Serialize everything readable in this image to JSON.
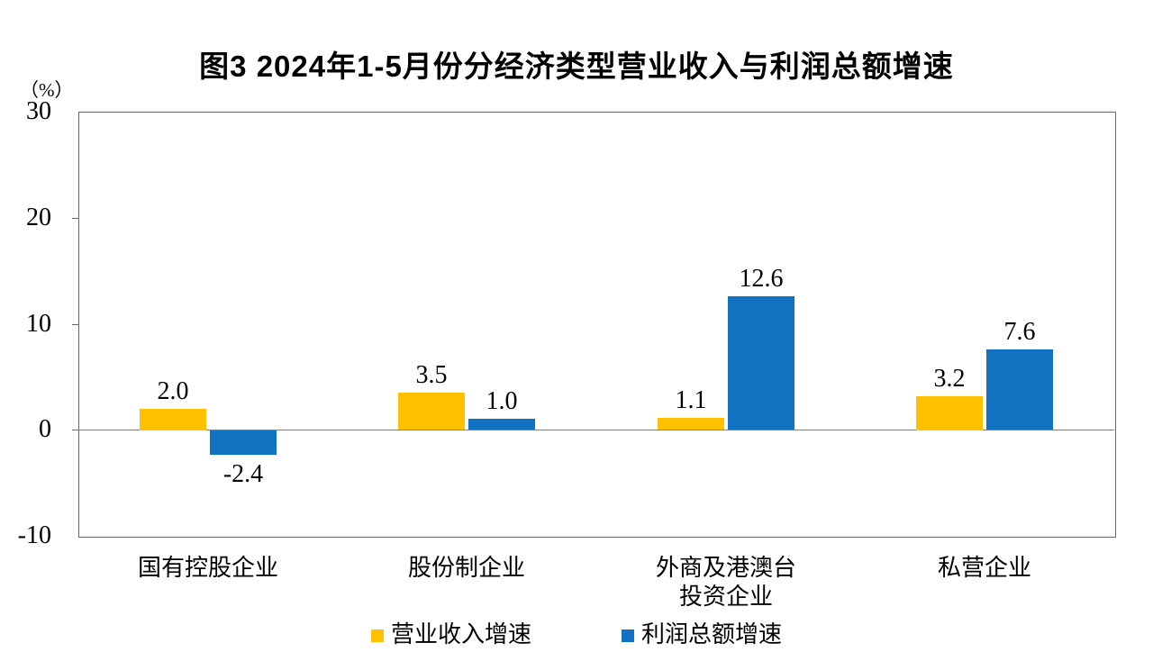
{
  "chart_data": {
    "type": "bar",
    "title": "图3 2024年1-5月份分经济类型营业收入与利润总额增速",
    "unit_label": "（%）",
    "categories": [
      "国有控股企业",
      "股份制企业",
      "外商及港澳台\n投资企业",
      "私营企业"
    ],
    "series": [
      {
        "name": "营业收入增速",
        "color": "#FFC000",
        "values": [
          2.0,
          3.5,
          1.1,
          3.2
        ],
        "labels": [
          "2.0",
          "3.5",
          "1.1",
          "3.2"
        ]
      },
      {
        "name": "利润总额增速",
        "color": "#1272C2",
        "values": [
          -2.4,
          1.0,
          12.6,
          7.6
        ],
        "labels": [
          "-2.4",
          "1.0",
          "12.6",
          "7.6"
        ]
      }
    ],
    "y_axis": {
      "min": -10,
      "max": 30,
      "tick_step": 10,
      "tick_labels": [
        "30",
        "20",
        "10",
        "0",
        "-10"
      ]
    },
    "legend_position": "bottom",
    "grid": false,
    "axis_color": "#666666",
    "zero_line_color": "#808080"
  }
}
